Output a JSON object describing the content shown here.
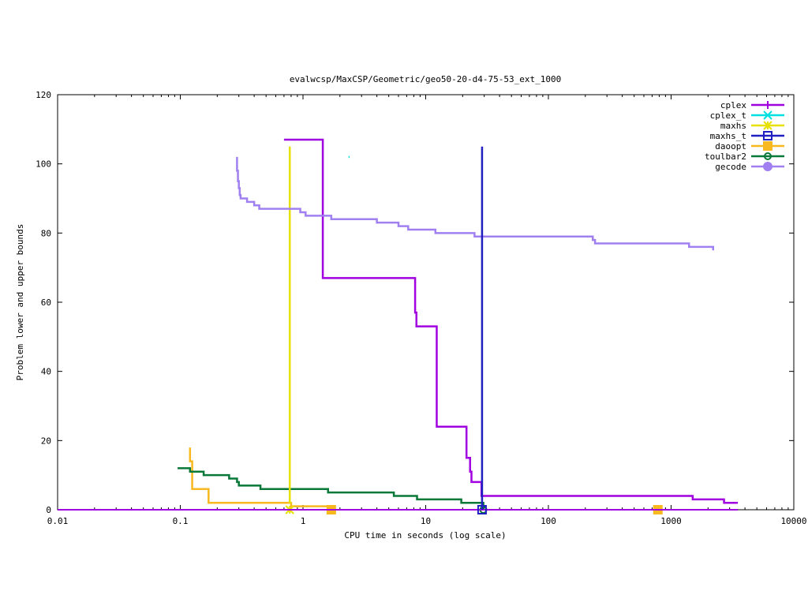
{
  "chart_data": {
    "type": "line",
    "title": "evalwcsp/MaxCSP/Geometric/geo50-20-d4-75-53_ext_1000",
    "xlabel": "CPU time in seconds (log scale)",
    "ylabel": "Problem lower and upper bounds",
    "xscale": "log",
    "xlim": [
      0.01,
      10000
    ],
    "ylim": [
      0,
      120
    ],
    "xticks": [
      {
        "value": 0.01,
        "label": "0.01"
      },
      {
        "value": 0.1,
        "label": "0.1"
      },
      {
        "value": 1,
        "label": "1"
      },
      {
        "value": 10,
        "label": "10"
      },
      {
        "value": 100,
        "label": "100"
      },
      {
        "value": 1000,
        "label": "1000"
      },
      {
        "value": 10000,
        "label": "10000"
      }
    ],
    "yticks": [
      {
        "value": 0,
        "label": "0"
      },
      {
        "value": 20,
        "label": "20"
      },
      {
        "value": 40,
        "label": "40"
      },
      {
        "value": 60,
        "label": "60"
      },
      {
        "value": 80,
        "label": "80"
      },
      {
        "value": 100,
        "label": "100"
      },
      {
        "value": 120,
        "label": "120"
      }
    ],
    "legend_position": "top-right",
    "series": [
      {
        "name": "cplex",
        "color": "#a000e0",
        "marker": "plus",
        "points": [
          [
            0.7,
            107
          ],
          [
            1.45,
            107
          ],
          [
            1.45,
            67
          ],
          [
            8.2,
            67
          ],
          [
            8.2,
            57
          ],
          [
            8.4,
            57
          ],
          [
            8.4,
            53
          ],
          [
            12.3,
            53
          ],
          [
            12.3,
            24
          ],
          [
            21.5,
            24
          ],
          [
            21.5,
            15
          ],
          [
            23.0,
            15
          ],
          [
            23.0,
            11
          ],
          [
            23.6,
            11
          ],
          [
            23.6,
            8
          ],
          [
            28.5,
            8
          ],
          [
            28.5,
            4
          ],
          [
            1500,
            4
          ],
          [
            1500,
            3
          ],
          [
            2700,
            3
          ],
          [
            2700,
            2
          ],
          [
            3500,
            2
          ]
        ],
        "lower": [
          [
            0.01,
            0
          ],
          [
            3500,
            0
          ]
        ],
        "markers": []
      },
      {
        "name": "cplex_t",
        "color": "#00e0e0",
        "marker": "x",
        "points": [
          [
            2.35,
            102
          ],
          [
            2.4,
            102
          ]
        ],
        "markers": []
      },
      {
        "name": "maxhs",
        "color": "#e8e000",
        "marker": "star",
        "points": [
          [
            0.78,
            105
          ],
          [
            0.78,
            2
          ],
          [
            0.8,
            2
          ]
        ],
        "lower": [
          [
            0.01,
            0
          ],
          [
            0.8,
            0
          ]
        ],
        "markers": [
          [
            0.78,
            0
          ]
        ]
      },
      {
        "name": "maxhs_t",
        "color": "#2020c0",
        "marker": "box",
        "points": [
          [
            28.8,
            105
          ],
          [
            28.8,
            0
          ]
        ],
        "markers": [
          [
            28.8,
            0
          ]
        ]
      },
      {
        "name": "daoopt",
        "color": "#f8b820",
        "marker": "filled-box",
        "points": [
          [
            0.12,
            18
          ],
          [
            0.12,
            14
          ],
          [
            0.125,
            14
          ],
          [
            0.125,
            6
          ],
          [
            0.17,
            6
          ],
          [
            0.17,
            2
          ],
          [
            0.8,
            2
          ],
          [
            0.8,
            1
          ],
          [
            1.7,
            1
          ]
        ],
        "lower": [
          [
            0.01,
            0
          ],
          [
            800,
            0
          ]
        ],
        "markers": [
          [
            1.7,
            0
          ],
          [
            780,
            0
          ]
        ]
      },
      {
        "name": "toulbar2",
        "color": "#087838",
        "marker": "circle",
        "points": [
          [
            0.095,
            12
          ],
          [
            0.12,
            12
          ],
          [
            0.12,
            11
          ],
          [
            0.155,
            11
          ],
          [
            0.155,
            10
          ],
          [
            0.25,
            10
          ],
          [
            0.25,
            9
          ],
          [
            0.29,
            9
          ],
          [
            0.29,
            8
          ],
          [
            0.3,
            8
          ],
          [
            0.3,
            7
          ],
          [
            0.45,
            7
          ],
          [
            0.45,
            6
          ],
          [
            1.6,
            6
          ],
          [
            1.6,
            5
          ],
          [
            5.5,
            5
          ],
          [
            5.5,
            4
          ],
          [
            8.5,
            4
          ],
          [
            8.5,
            3
          ],
          [
            19.5,
            3
          ],
          [
            19.5,
            2
          ],
          [
            29.5,
            2
          ],
          [
            29.5,
            0
          ]
        ],
        "lower": [
          [
            0.07,
            0
          ],
          [
            29.5,
            0
          ]
        ],
        "markers": [
          [
            29.5,
            0
          ]
        ]
      },
      {
        "name": "gecode",
        "color": "#a080f0",
        "marker": "filled-circle",
        "points": [
          [
            0.29,
            102
          ],
          [
            0.29,
            98
          ],
          [
            0.295,
            98
          ],
          [
            0.295,
            95
          ],
          [
            0.3,
            95
          ],
          [
            0.3,
            93
          ],
          [
            0.305,
            93
          ],
          [
            0.305,
            91
          ],
          [
            0.31,
            91
          ],
          [
            0.31,
            90
          ],
          [
            0.35,
            90
          ],
          [
            0.35,
            89
          ],
          [
            0.4,
            89
          ],
          [
            0.4,
            88
          ],
          [
            0.44,
            88
          ],
          [
            0.44,
            87
          ],
          [
            0.95,
            87
          ],
          [
            0.95,
            86
          ],
          [
            1.05,
            86
          ],
          [
            1.05,
            85
          ],
          [
            1.7,
            85
          ],
          [
            1.7,
            84
          ],
          [
            4.0,
            84
          ],
          [
            4.0,
            83
          ],
          [
            6.0,
            83
          ],
          [
            6.0,
            82
          ],
          [
            7.2,
            82
          ],
          [
            7.2,
            81
          ],
          [
            12.0,
            81
          ],
          [
            12.0,
            80
          ],
          [
            25.0,
            80
          ],
          [
            25.0,
            79
          ],
          [
            230,
            79
          ],
          [
            230,
            78
          ],
          [
            240,
            78
          ],
          [
            240,
            77
          ],
          [
            1400,
            77
          ],
          [
            1400,
            76
          ],
          [
            2200,
            76
          ],
          [
            2200,
            75
          ]
        ],
        "markers": []
      }
    ]
  }
}
